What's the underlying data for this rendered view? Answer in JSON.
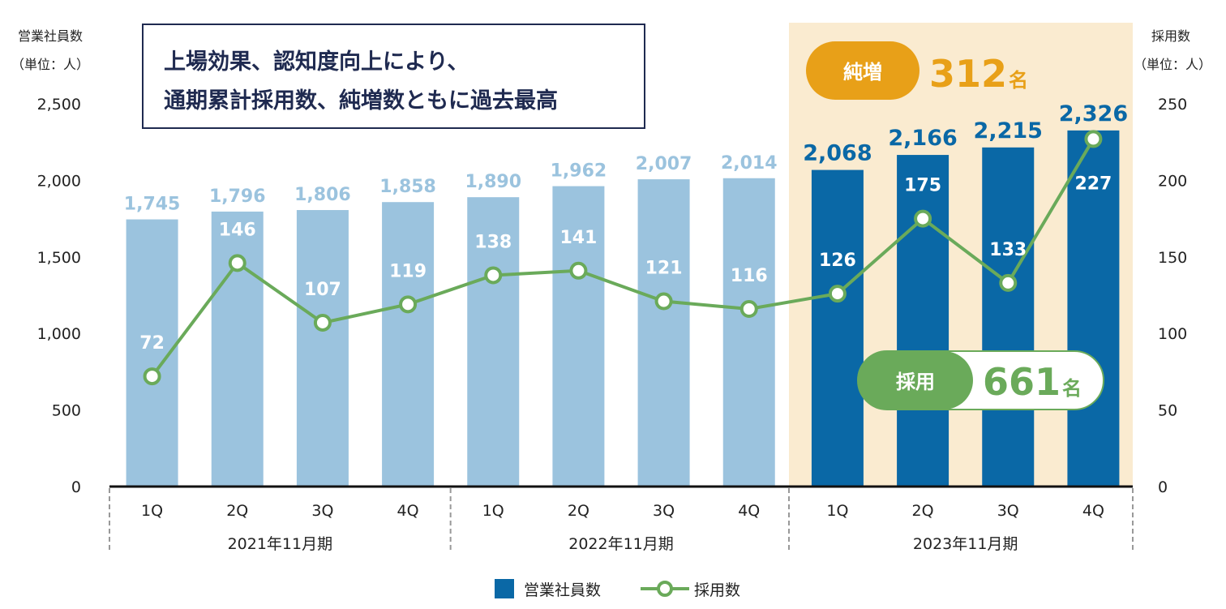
{
  "chart_data": {
    "type": "bar+line",
    "categories": [
      "1Q",
      "2Q",
      "3Q",
      "4Q",
      "1Q",
      "2Q",
      "3Q",
      "4Q",
      "1Q",
      "2Q",
      "3Q",
      "4Q"
    ],
    "groups": [
      "2021年11月期",
      "2022年11月期",
      "2023年11月期"
    ],
    "left_axis": {
      "label": "営業社員数",
      "unit": "（単位：人）",
      "ylim": [
        0,
        2500
      ],
      "ticks": [
        0,
        500,
        1000,
        1500,
        2000,
        2500
      ],
      "tick_labels": [
        "0",
        "500",
        "1,000",
        "1,500",
        "2,000",
        "2,500"
      ]
    },
    "right_axis": {
      "label": "採用数",
      "unit": "（単位：人）",
      "ylim": [
        0,
        250
      ],
      "ticks": [
        0,
        50,
        100,
        150,
        200,
        250
      ],
      "tick_labels": [
        "0",
        "50",
        "100",
        "150",
        "200",
        "250"
      ]
    },
    "series": [
      {
        "name": "営業社員数",
        "type": "bar",
        "axis": "left",
        "values": [
          1745,
          1796,
          1806,
          1858,
          1890,
          1962,
          2007,
          2014,
          2068,
          2166,
          2215,
          2326
        ],
        "labels": [
          "1,745",
          "1,796",
          "1,806",
          "1,858",
          "1,890",
          "1,962",
          "2,007",
          "2,014",
          "2,068",
          "2,166",
          "2,215",
          "2,326"
        ]
      },
      {
        "name": "採用数",
        "type": "line",
        "axis": "right",
        "values": [
          72,
          146,
          107,
          119,
          138,
          141,
          121,
          116,
          126,
          175,
          133,
          227
        ],
        "labels": [
          "72",
          "146",
          "107",
          "119",
          "138",
          "141",
          "121",
          "116",
          "126",
          "175",
          "133",
          "227"
        ]
      }
    ],
    "callout": {
      "line1": "上場効果、認知度向上により、",
      "line2": "通期累計採用数、純増数ともに過去最高"
    },
    "badge_net": {
      "label": "純増",
      "value": "312",
      "unit": "名"
    },
    "badge_hire": {
      "label": "採用",
      "value": "661",
      "unit": "名"
    },
    "legend": "bottom",
    "colors": {
      "bar_past": "#9bc3de",
      "bar_current": "#0a68a6",
      "line": "#6aaa5a",
      "highlight": "#faebd0",
      "net": "#e8a018",
      "navy": "#1f2a50"
    }
  }
}
